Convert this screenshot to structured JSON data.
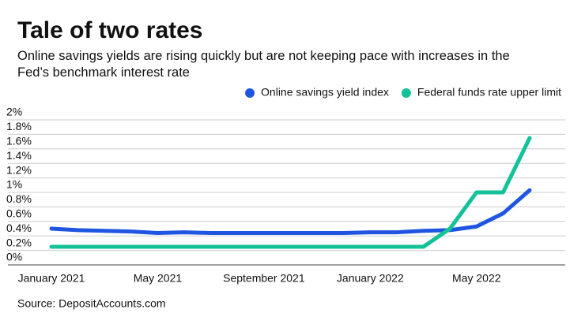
{
  "chart_data": {
    "type": "line",
    "title": "Tale of two rates",
    "subtitle": "Online savings yields are rising quickly but are not keeping pace with increases in the Fed’s benchmark interest rate",
    "source": "Source: DepositAccounts.com",
    "categories": [
      "January 2021",
      null,
      null,
      null,
      "May 2021",
      null,
      null,
      null,
      "September 2021",
      null,
      null,
      null,
      "January 2022",
      null,
      null,
      null,
      "May 2022",
      null,
      null
    ],
    "series": [
      {
        "name": "Online savings yield index",
        "color": "#1f55e0",
        "values": [
          0.5,
          0.48,
          0.47,
          0.46,
          0.44,
          0.45,
          0.44,
          0.44,
          0.44,
          0.44,
          0.44,
          0.44,
          0.45,
          0.45,
          0.47,
          0.48,
          0.53,
          0.71,
          1.03
        ]
      },
      {
        "name": "Federal funds rate upper limit",
        "color": "#14c29a",
        "values": [
          0.25,
          0.25,
          0.25,
          0.25,
          0.25,
          0.25,
          0.25,
          0.25,
          0.25,
          0.25,
          0.25,
          0.25,
          0.25,
          0.25,
          0.25,
          0.5,
          1.0,
          1.0,
          1.75
        ]
      }
    ],
    "ylim": [
      0,
      2
    ],
    "yticks": [
      {
        "value": 0,
        "label": "0%"
      },
      {
        "value": 0.2,
        "label": "0.2%"
      },
      {
        "value": 0.4,
        "label": "0.4%"
      },
      {
        "value": 0.6,
        "label": "0.6%"
      },
      {
        "value": 0.8,
        "label": "0.8%"
      },
      {
        "value": 1,
        "label": "1%"
      },
      {
        "value": 1.2,
        "label": "1.2%"
      },
      {
        "value": 1.4,
        "label": "1.4%"
      },
      {
        "value": 1.6,
        "label": "1.6%"
      },
      {
        "value": 1.8,
        "label": "1.8%"
      },
      {
        "value": 2,
        "label": "2%"
      }
    ],
    "grid": true,
    "legend": "top-right"
  }
}
